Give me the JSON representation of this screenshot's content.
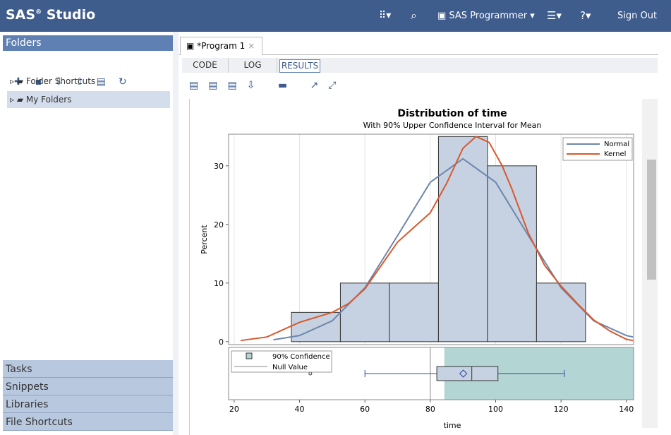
{
  "header": {
    "brand": "SAS",
    "brand_mark": "®",
    "product": "Studio",
    "role": "SAS Programmer",
    "sign_out": "Sign Out"
  },
  "sidebar": {
    "title": "Folders",
    "items": [
      "Folder Shortcuts",
      "My Folders"
    ],
    "sections": [
      "Tasks",
      "Snippets",
      "Libraries",
      "File Shortcuts"
    ]
  },
  "editor": {
    "tab": "*Program 1",
    "subtabs": [
      "CODE",
      "LOG",
      "RESULTS"
    ]
  },
  "chart_data": {
    "type": "histogram",
    "title": "Distribution of time",
    "subtitle": "With 90% Upper Confidence Interval for Mean",
    "bins": [
      37.5,
      52.5,
      67.5,
      82.5,
      97.5,
      112.5,
      127.5
    ],
    "values": [
      5,
      10,
      10,
      35,
      30,
      10
    ],
    "color": "#c6d1e2",
    "series": [
      {
        "name": "Normal",
        "color": "#6c86ac",
        "x": [
          32,
          40,
          50,
          60,
          70,
          80,
          90,
          100,
          110,
          120,
          130,
          140,
          142
        ],
        "values": [
          0.33,
          1.05,
          3.56,
          9.2,
          18.1,
          27.2,
          31.2,
          27.2,
          18.1,
          9.2,
          3.56,
          1.05,
          0.8
        ]
      },
      {
        "name": "Kernel",
        "color": "#d9582b",
        "x": [
          22,
          30,
          40,
          50,
          55,
          60,
          65,
          70,
          75,
          80,
          85,
          90,
          94,
          98,
          102,
          105,
          110,
          115,
          120,
          125,
          130,
          135,
          140,
          142
        ],
        "values": [
          0.2,
          0.8,
          3.3,
          5,
          6.5,
          9,
          13,
          17,
          19.5,
          22,
          27,
          33,
          35,
          34,
          30,
          26,
          18.5,
          13,
          9.5,
          6.5,
          3.7,
          1.8,
          0.4,
          0.2
        ]
      }
    ],
    "xlim": [
      18.3,
      142.2
    ],
    "ylim": [
      -0.5,
      35.4
    ],
    "xticks": [
      20,
      40,
      60,
      80,
      100,
      120,
      140
    ],
    "yticks": [
      0,
      10,
      20,
      30
    ],
    "grid": "x",
    "y_label": "Percent",
    "x_label": "time",
    "legend": "top-right",
    "box": {
      "whisker_low": 60,
      "q1": 82,
      "median": 92.7,
      "q3": 100.7,
      "whisker_high": 121,
      "mean": 90.1,
      "outliers": [
        43.3
      ],
      "color": "#2a49a8"
    },
    "confidence": {
      "name": "90% Confidence",
      "lower": 84.3,
      "color": "#b3d5d3"
    },
    "null_value": {
      "name": "Null Value",
      "value": 80
    }
  }
}
